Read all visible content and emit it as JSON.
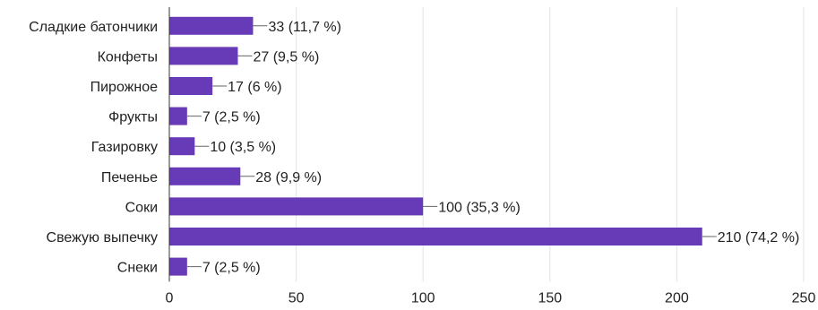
{
  "chart_data": {
    "type": "bar",
    "orientation": "horizontal",
    "categories": [
      "Сладкие батончики",
      "Конфеты",
      "Пирожное",
      "Фрукты",
      "Газировку",
      "Печенье",
      "Соки",
      "Свежую выпечку",
      "Снеки"
    ],
    "values": [
      33,
      27,
      17,
      7,
      10,
      28,
      100,
      210,
      7
    ],
    "data_labels": [
      "33 (11,7 %)",
      "27 (9,5 %)",
      "17 (6 %)",
      "7 (2,5 %)",
      "10 (3,5 %)",
      "28 (9,9 %)",
      "100 (35,3 %)",
      "210 (74,2 %)",
      "7 (2,5 %)"
    ],
    "xlim": [
      0,
      250
    ],
    "xticks": [
      0,
      50,
      100,
      150,
      200,
      250
    ],
    "xtick_labels": [
      "0",
      "50",
      "100",
      "150",
      "200",
      "250"
    ],
    "grid": true,
    "bar_color": "#673ab7"
  }
}
